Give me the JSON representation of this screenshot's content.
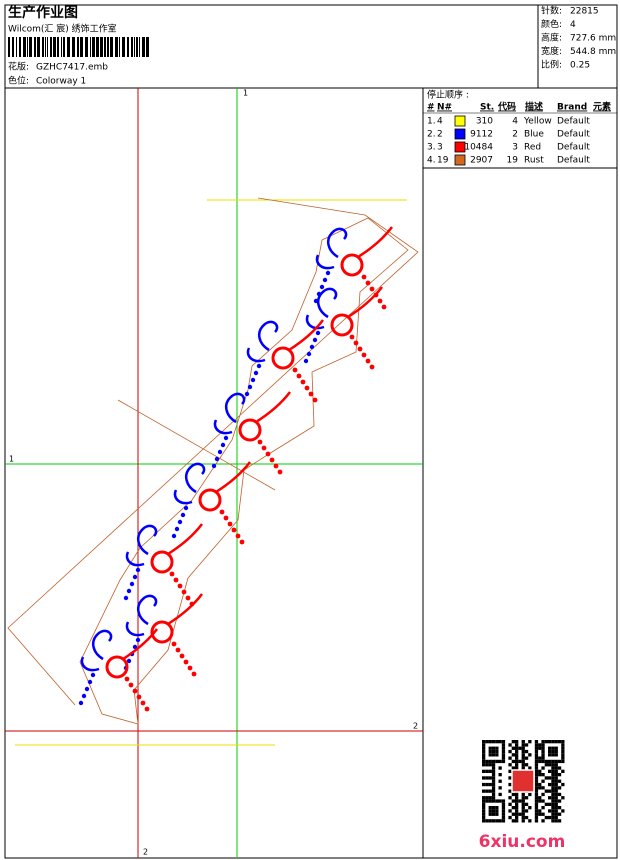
{
  "header": {
    "title": "生产作业图",
    "studio": "Wilcom(汇 宸) 绣饰工作室",
    "design_label": "花版:",
    "design": "GZHC7417.emb",
    "colorway_label": "色位:",
    "colorway": "Colorway 1"
  },
  "info": [
    {
      "label": "针数:",
      "value": "22815"
    },
    {
      "label": "颜色:",
      "value": "4"
    },
    {
      "label": "高度:",
      "value": "727.6 mm"
    },
    {
      "label": "宽度:",
      "value": "544.8 mm"
    },
    {
      "label": "比例:",
      "value": "0.25"
    }
  ],
  "stop_sequence": {
    "title": "停止顺序 :",
    "columns": [
      "#",
      "N#",
      "St.",
      "代码",
      "描述",
      "Brand",
      "元素"
    ],
    "rows": [
      {
        "seq": "1.",
        "n": "4",
        "color": "#ffff00",
        "stitches": "310",
        "code": "4",
        "description": "Yellow",
        "brand": "Default"
      },
      {
        "seq": "2.",
        "n": "2",
        "color": "#0000ff",
        "stitches": "9112",
        "code": "2",
        "description": "Blue",
        "brand": "Default"
      },
      {
        "seq": "3.",
        "n": "3",
        "color": "#ff0000",
        "stitches": "10484",
        "code": "3",
        "description": "Red",
        "brand": "Default"
      },
      {
        "seq": "4.",
        "n": "19",
        "color": "#d2691e",
        "stitches": "2907",
        "code": "19",
        "description": "Rust",
        "brand": "Default"
      }
    ]
  },
  "markers": {
    "top": "1",
    "left": "1",
    "right": "2",
    "bottom": "2"
  },
  "watermark": "6xiu.com"
}
